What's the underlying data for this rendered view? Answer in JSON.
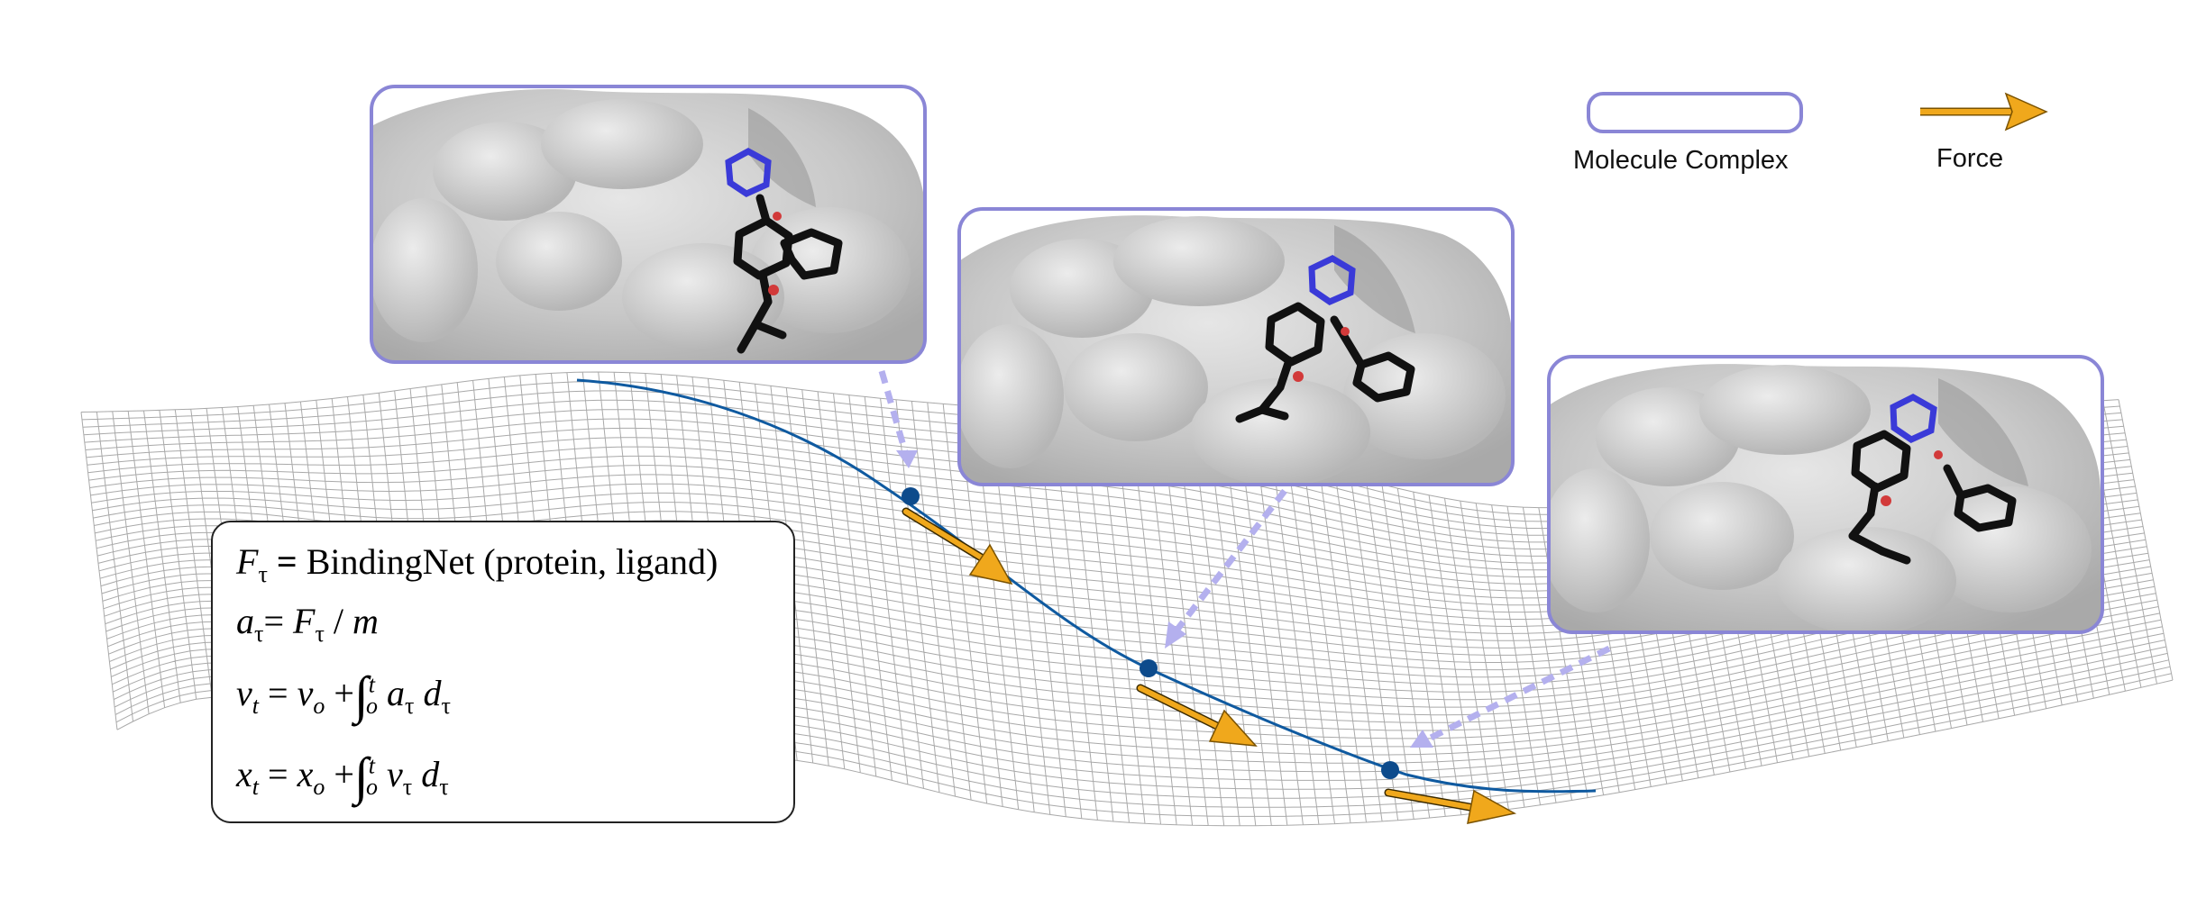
{
  "legend": {
    "complex_label": "Molecule Complex",
    "force_label": "Force",
    "complex_color": "#8a86d6",
    "force_color": "#f0a81c"
  },
  "equations": {
    "line1_rest": " BindingNet (protein, ligand)",
    "tau": "τ",
    "sym_F": "F",
    "sym_a": "a",
    "sym_v": "v",
    "sym_x": "x",
    "sym_m": "m",
    "sym_t": "t",
    "sym_o": "o",
    "integral": "∫",
    "d": "d",
    "eq": "=",
    "plus": "+",
    "slash": "/"
  },
  "colors": {
    "trajectory": "#0f5aa0",
    "point": "#0d4b8c",
    "mesh": "#9a9a9a",
    "panel_border": "#8a86d6",
    "dashed_arrow": "#b4b0ee",
    "protein": "#c9c9c9",
    "ligand": "#111111",
    "nitrogen": "#3a3ad8",
    "oxygen": "#d23a3a"
  },
  "icons": [
    "molecule-complex-swatch",
    "force-arrow-icon"
  ]
}
